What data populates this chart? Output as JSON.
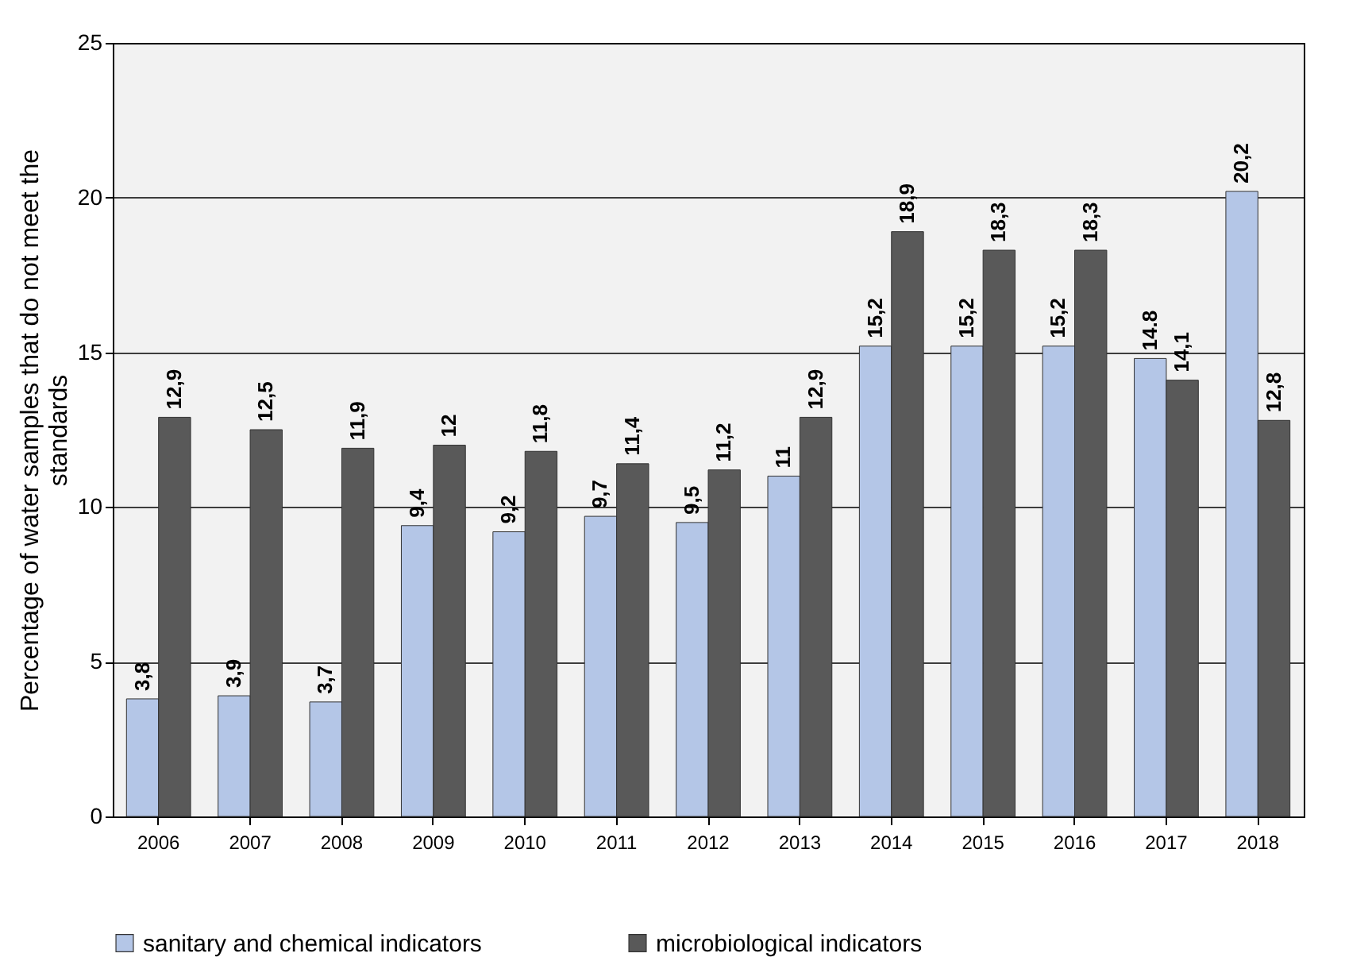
{
  "chart_data": {
    "type": "bar",
    "ylabel": "Percentage of water samples that do not meet the standards",
    "categories": [
      "2006",
      "2007",
      "2008",
      "2009",
      "2010",
      "2011",
      "2012",
      "2013",
      "2014",
      "2015",
      "2016",
      "2017",
      "2018"
    ],
    "series": [
      {
        "name": "sanitary and chemical indicators",
        "color": "#b4c6e7",
        "values": [
          3.8,
          3.9,
          3.7,
          9.4,
          9.2,
          9.7,
          9.5,
          11,
          15.2,
          15.2,
          15.2,
          14.8,
          20.2
        ],
        "value_labels": [
          "3,8",
          "3,9",
          "3,7",
          "9,4",
          "9,2",
          "9,7",
          "9,5",
          "11",
          "15,2",
          "15,2",
          "15,2",
          "14.8",
          "20,2"
        ]
      },
      {
        "name": "microbiological indicators",
        "color": "#595959",
        "values": [
          12.9,
          12.5,
          11.9,
          12,
          11.8,
          11.4,
          11.2,
          12.9,
          18.9,
          18.3,
          18.3,
          14.1,
          12.8
        ],
        "value_labels": [
          "12,9",
          "12,5",
          "11,9",
          "12",
          "11,8",
          "11,4",
          "11,2",
          "12,9",
          "18,9",
          "18,3",
          "18,3",
          "14,1",
          "12,8"
        ]
      }
    ],
    "ylim": [
      0,
      25
    ],
    "yticks": [
      0,
      5,
      10,
      15,
      20,
      25
    ],
    "grid": "y",
    "legend": "bottom"
  }
}
